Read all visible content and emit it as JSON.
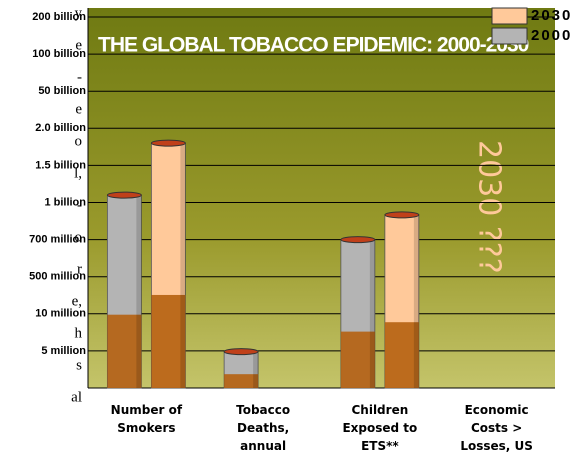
{
  "chart_data": {
    "type": "bar",
    "title": "THE GLOBAL TOBACCO EPIDEMIC: 2000-2030",
    "annotation": "2030 ???",
    "categories": [
      "Number of\nSmokers",
      "Tobacco\nDeaths,\nannual",
      "Children\nExposed to\nETS**",
      "Economic\nCosts >\nLosses, US"
    ],
    "series": [
      {
        "name": "2000",
        "color": "#b4b4b4",
        "values": [
          1100000000,
          4900000,
          700000000,
          null
        ]
      },
      {
        "name": "2030",
        "color": "#ffc99a",
        "values": [
          1800000000,
          null,
          900000000,
          null
        ]
      }
    ],
    "ylim": [
      0,
      200000000000
    ],
    "yticks": [
      {
        "value": 5000000,
        "label": "5 million"
      },
      {
        "value": 10000000,
        "label": "10 million"
      },
      {
        "value": 500000000,
        "label": "500 million"
      },
      {
        "value": 700000000,
        "label": "700 million"
      },
      {
        "value": 1000000000,
        "label": "1 billion"
      },
      {
        "value": 1500000000,
        "label": "1.5 billion"
      },
      {
        "value": 2000000000,
        "label": "2.0 billion"
      },
      {
        "value": 50000000000,
        "label": "50 billion"
      },
      {
        "value": 100000000000,
        "label": "100 billion"
      },
      {
        "value": 200000000000,
        "label": "200 billion"
      }
    ],
    "grid": true
  },
  "margin_fragments": [
    "y",
    "e",
    "-",
    "e",
    "o",
    "l,",
    "-",
    "o",
    "r",
    "e,",
    "h",
    "s",
    "al"
  ]
}
